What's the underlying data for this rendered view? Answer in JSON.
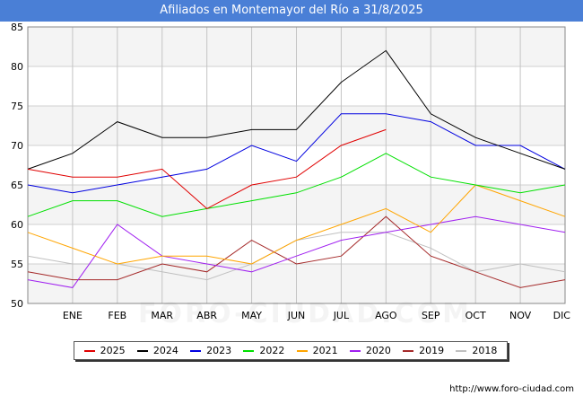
{
  "header": {
    "title": "Afiliados en Montemayor del Río a 31/8/2025"
  },
  "watermark_text": "FORO-CIUDAD.COM",
  "source_text": "http://www.foro-ciudad.com",
  "chart_data": {
    "type": "line",
    "title": "Afiliados en Montemayor del Río a 31/8/2025",
    "xlabel": "",
    "ylabel": "",
    "categories": [
      "",
      "ENE",
      "FEB",
      "MAR",
      "ABR",
      "MAY",
      "JUN",
      "JUL",
      "AGO",
      "SEP",
      "OCT",
      "NOV",
      "DIC"
    ],
    "ylim": [
      50,
      85
    ],
    "yticks": [
      50,
      55,
      60,
      65,
      70,
      75,
      80,
      85
    ],
    "grid": true,
    "legend_position": "bottom",
    "series": [
      {
        "name": "2025",
        "color": "#e00000",
        "values": [
          67,
          66,
          66,
          67,
          62,
          65,
          66,
          70,
          72,
          null,
          null,
          null,
          null
        ]
      },
      {
        "name": "2024",
        "color": "#000000",
        "values": [
          67,
          69,
          73,
          71,
          71,
          72,
          72,
          78,
          82,
          74,
          71,
          69,
          67
        ]
      },
      {
        "name": "2023",
        "color": "#0000e0",
        "values": [
          65,
          64,
          65,
          66,
          67,
          70,
          68,
          74,
          74,
          73,
          70,
          70,
          67
        ]
      },
      {
        "name": "2022",
        "color": "#00e000",
        "values": [
          61,
          63,
          63,
          61,
          62,
          63,
          64,
          66,
          69,
          66,
          65,
          64,
          65
        ]
      },
      {
        "name": "2021",
        "color": "#ffa500",
        "values": [
          59,
          57,
          55,
          56,
          56,
          55,
          58,
          60,
          62,
          59,
          65,
          63,
          61
        ]
      },
      {
        "name": "2020",
        "color": "#a020f0",
        "values": [
          53,
          52,
          60,
          56,
          55,
          54,
          56,
          58,
          59,
          60,
          61,
          60,
          59
        ]
      },
      {
        "name": "2019",
        "color": "#a52a2a",
        "values": [
          54,
          53,
          53,
          55,
          54,
          58,
          55,
          56,
          61,
          56,
          54,
          52,
          53
        ]
      },
      {
        "name": "2018",
        "color": "#c0c0c0",
        "values": [
          56,
          55,
          55,
          54,
          53,
          55,
          58,
          59,
          59,
          57,
          54,
          55,
          54
        ]
      }
    ]
  }
}
